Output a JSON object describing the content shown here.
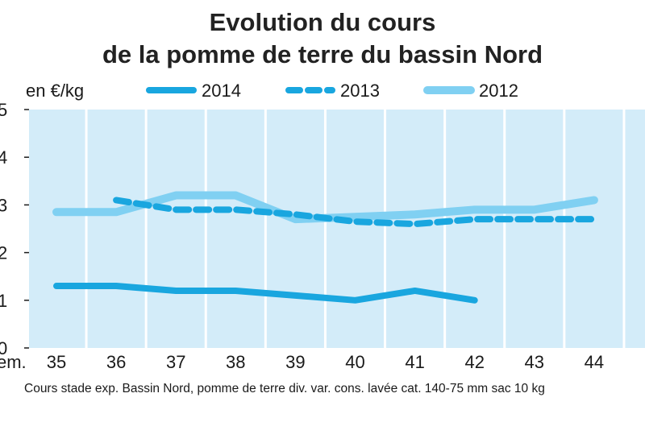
{
  "chart_data": {
    "type": "line",
    "title_line1": "Evolution du cours",
    "title_line2": "de la pomme de terre du bassin Nord",
    "ylabel": "en €/kg",
    "xlabel": "em.",
    "source": "Cours stade exp. Bassin Nord, pomme de terre div. var. cons. lavée cat. 140-75 mm sac 10 kg",
    "x": [
      35,
      36,
      37,
      38,
      39,
      40,
      41,
      42,
      43,
      44
    ],
    "ylim": [
      0,
      5
    ],
    "yticks": [
      0,
      1,
      2,
      3,
      4,
      5
    ],
    "grid": "vertical",
    "legend_position": "top",
    "series": [
      {
        "name": "2014",
        "style": "solid",
        "color": "#19a6df",
        "x": [
          35,
          36,
          37,
          38,
          39,
          40,
          41,
          42
        ],
        "values": [
          1.3,
          1.3,
          1.2,
          1.2,
          1.1,
          1.0,
          1.2,
          1.0
        ]
      },
      {
        "name": "2013",
        "style": "dashed",
        "color": "#19a6df",
        "x": [
          36,
          37,
          38,
          39,
          40,
          41,
          42,
          43,
          44
        ],
        "values": [
          3.1,
          2.9,
          2.9,
          2.8,
          2.65,
          2.6,
          2.7,
          2.7,
          2.7
        ]
      },
      {
        "name": "2012",
        "style": "solid-light",
        "color": "#80d0f2",
        "x": [
          35,
          36,
          37,
          38,
          39,
          40,
          41,
          42,
          43,
          44
        ],
        "values": [
          2.85,
          2.85,
          3.2,
          3.2,
          2.7,
          2.75,
          2.8,
          2.9,
          2.9,
          3.1
        ]
      }
    ]
  },
  "colors": {
    "plot_background": "#d3ecf9",
    "grid": "#ffffff"
  }
}
